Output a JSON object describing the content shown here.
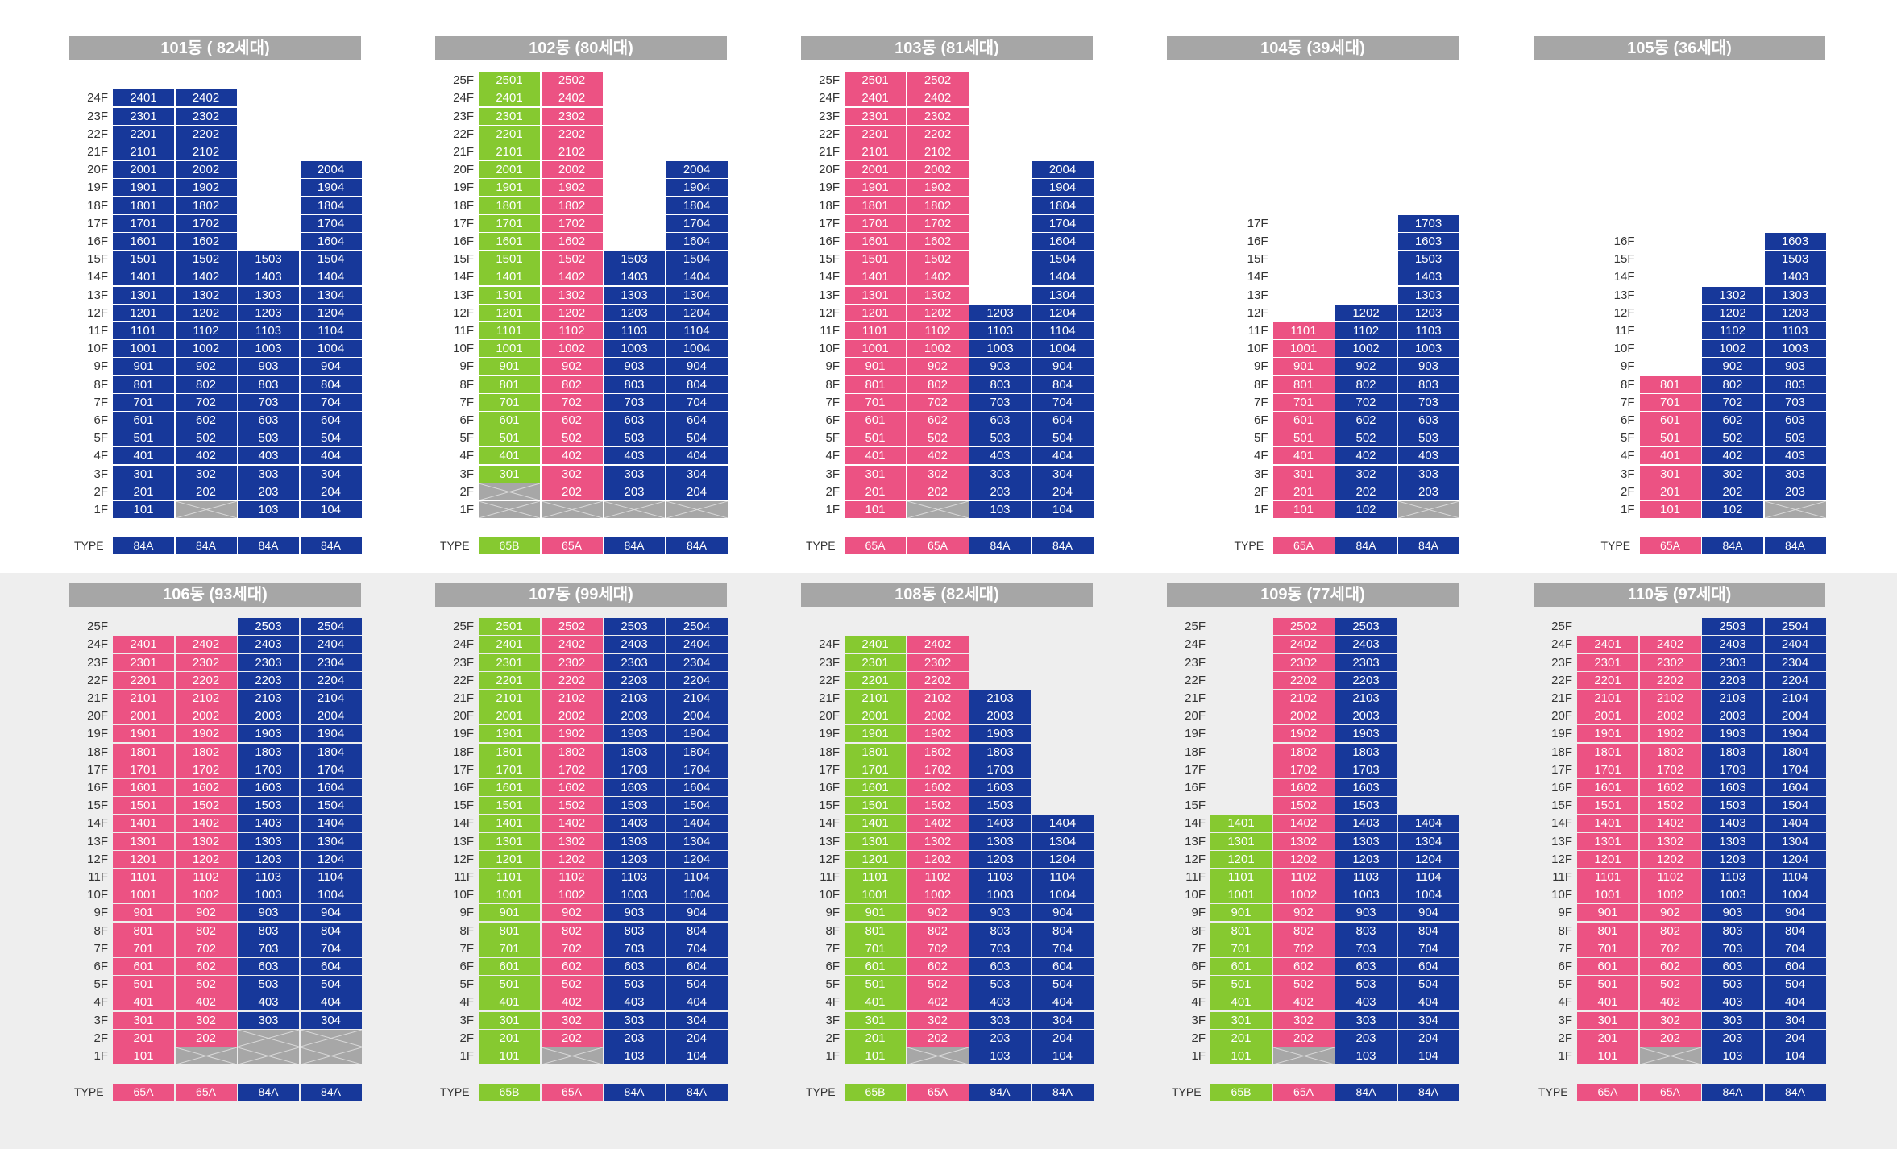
{
  "colors": {
    "84A": "#17389a",
    "65A": "#ec5283",
    "65B": "#86c930",
    "unavailable": "#a7a7a7",
    "header": "#a6a6a6",
    "bottom_background": "#eeeeee"
  },
  "type_label": "TYPE",
  "buildings": [
    {
      "title": "101동 ( 82세대)",
      "top_floor": 24,
      "columns": [
        {
          "line": "01",
          "type": "84A",
          "max_floor": 24,
          "unavailable": []
        },
        {
          "line": "02",
          "type": "84A",
          "max_floor": 24,
          "unavailable": [
            1
          ]
        },
        {
          "line": "03",
          "type": "84A",
          "max_floor": 15,
          "unavailable": []
        },
        {
          "line": "04",
          "type": "84A",
          "max_floor": 20,
          "unavailable": []
        }
      ]
    },
    {
      "title": "102동 (80세대)",
      "top_floor": 25,
      "columns": [
        {
          "line": "01",
          "type": "65B",
          "max_floor": 25,
          "unavailable": [
            1,
            2
          ]
        },
        {
          "line": "02",
          "type": "65A",
          "max_floor": 25,
          "unavailable": [
            1
          ]
        },
        {
          "line": "03",
          "type": "84A",
          "max_floor": 15,
          "unavailable": [
            1
          ]
        },
        {
          "line": "04",
          "type": "84A",
          "max_floor": 20,
          "unavailable": [
            1
          ]
        }
      ]
    },
    {
      "title": "103동 (81세대)",
      "top_floor": 25,
      "columns": [
        {
          "line": "01",
          "type": "65A",
          "max_floor": 25,
          "unavailable": []
        },
        {
          "line": "02",
          "type": "65A",
          "max_floor": 25,
          "unavailable": [
            1
          ]
        },
        {
          "line": "03",
          "type": "84A",
          "max_floor": 12,
          "unavailable": []
        },
        {
          "line": "04",
          "type": "84A",
          "max_floor": 20,
          "unavailable": []
        }
      ]
    },
    {
      "title": "104동 (39세대)",
      "top_floor": 17,
      "columns": [
        {
          "line": "01",
          "type": "65A",
          "max_floor": 11,
          "unavailable": []
        },
        {
          "line": "02",
          "type": "84A",
          "max_floor": 12,
          "unavailable": []
        },
        {
          "line": "03",
          "type": "84A",
          "max_floor": 17,
          "unavailable": [
            1
          ]
        }
      ]
    },
    {
      "title": "105동 (36세대)",
      "top_floor": 16,
      "columns": [
        {
          "line": "01",
          "type": "65A",
          "max_floor": 8,
          "unavailable": []
        },
        {
          "line": "02",
          "type": "84A",
          "max_floor": 13,
          "unavailable": []
        },
        {
          "line": "03",
          "type": "84A",
          "max_floor": 16,
          "unavailable": [
            1
          ]
        }
      ]
    },
    {
      "title": "106동 (93세대)",
      "top_floor": 25,
      "columns": [
        {
          "line": "01",
          "type": "65A",
          "max_floor": 24,
          "unavailable": []
        },
        {
          "line": "02",
          "type": "65A",
          "max_floor": 24,
          "unavailable": [
            1
          ]
        },
        {
          "line": "03",
          "type": "84A",
          "max_floor": 25,
          "unavailable": [
            1,
            2
          ]
        },
        {
          "line": "04",
          "type": "84A",
          "max_floor": 25,
          "unavailable": [
            1,
            2
          ]
        }
      ]
    },
    {
      "title": "107동 (99세대)",
      "top_floor": 25,
      "columns": [
        {
          "line": "01",
          "type": "65B",
          "max_floor": 25,
          "unavailable": []
        },
        {
          "line": "02",
          "type": "65A",
          "max_floor": 25,
          "unavailable": [
            1
          ]
        },
        {
          "line": "03",
          "type": "84A",
          "max_floor": 25,
          "unavailable": []
        },
        {
          "line": "04",
          "type": "84A",
          "max_floor": 25,
          "unavailable": []
        }
      ]
    },
    {
      "title": "108동 (82세대)",
      "top_floor": 24,
      "columns": [
        {
          "line": "01",
          "type": "65B",
          "max_floor": 24,
          "unavailable": []
        },
        {
          "line": "02",
          "type": "65A",
          "max_floor": 24,
          "unavailable": [
            1
          ]
        },
        {
          "line": "03",
          "type": "84A",
          "max_floor": 21,
          "unavailable": []
        },
        {
          "line": "04",
          "type": "84A",
          "max_floor": 14,
          "unavailable": []
        }
      ]
    },
    {
      "title": "109동 (77세대)",
      "top_floor": 25,
      "columns": [
        {
          "line": "01",
          "type": "65B",
          "max_floor": 14,
          "unavailable": []
        },
        {
          "line": "02",
          "type": "65A",
          "max_floor": 25,
          "unavailable": [
            1
          ]
        },
        {
          "line": "03",
          "type": "84A",
          "max_floor": 25,
          "unavailable": []
        },
        {
          "line": "04",
          "type": "84A",
          "max_floor": 14,
          "unavailable": []
        }
      ]
    },
    {
      "title": "110동 (97세대)",
      "top_floor": 25,
      "columns": [
        {
          "line": "01",
          "type": "65A",
          "max_floor": 24,
          "unavailable": []
        },
        {
          "line": "02",
          "type": "65A",
          "max_floor": 24,
          "unavailable": [
            1
          ]
        },
        {
          "line": "03",
          "type": "84A",
          "max_floor": 25,
          "unavailable": []
        },
        {
          "line": "04",
          "type": "84A",
          "max_floor": 25,
          "unavailable": []
        }
      ]
    }
  ]
}
